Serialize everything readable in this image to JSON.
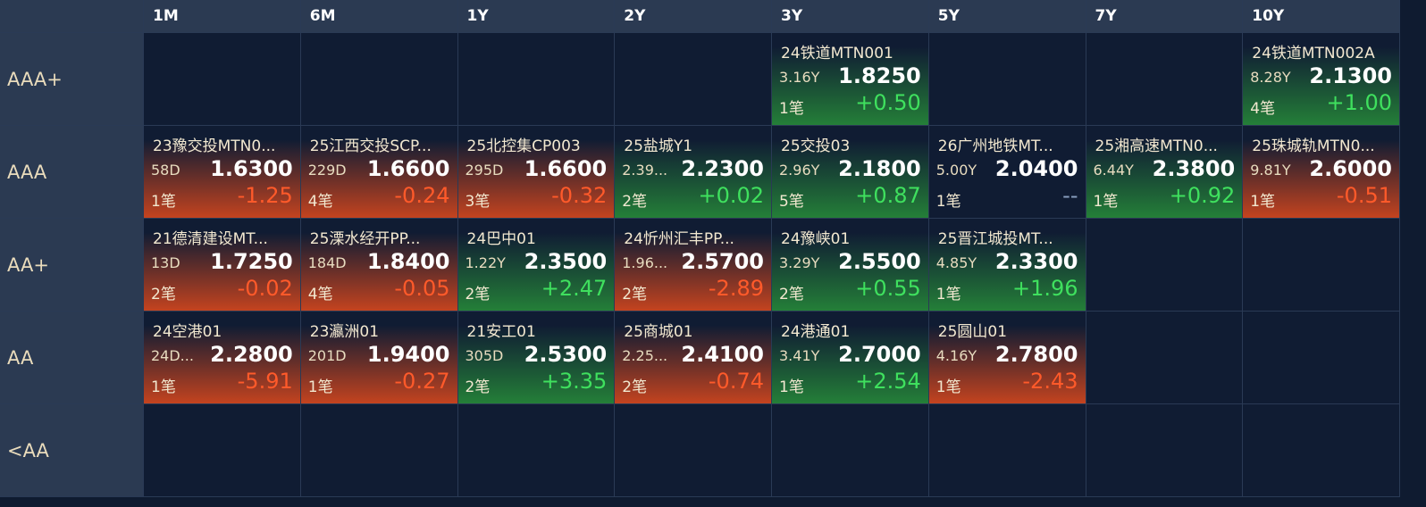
{
  "columns": [
    "1M",
    "6M",
    "1Y",
    "2Y",
    "3Y",
    "5Y",
    "7Y",
    "10Y"
  ],
  "rows": [
    {
      "label": "AAA+",
      "cells": [
        null,
        null,
        null,
        null,
        {
          "name": "24铁道MTN001",
          "term": "3.16Y",
          "yield": "1.8250",
          "count": "1笔",
          "change": "+0.50"
        },
        null,
        null,
        {
          "name": "24铁道MTN002A",
          "term": "8.28Y",
          "yield": "2.1300",
          "count": "4笔",
          "change": "+1.00"
        }
      ]
    },
    {
      "label": "AAA",
      "cells": [
        {
          "name": "23豫交投MTN0...",
          "term": "58D",
          "yield": "1.6300",
          "count": "1笔",
          "change": "-1.25"
        },
        {
          "name": "25江西交投SCP...",
          "term": "229D",
          "yield": "1.6600",
          "count": "4笔",
          "change": "-0.24"
        },
        {
          "name": "25北控集CP003",
          "term": "295D",
          "yield": "1.6600",
          "count": "3笔",
          "change": "-0.32"
        },
        {
          "name": "25盐城Y1",
          "term": "2.39...",
          "yield": "2.2300",
          "count": "2笔",
          "change": "+0.02"
        },
        {
          "name": "25交投03",
          "term": "2.96Y",
          "yield": "2.1800",
          "count": "5笔",
          "change": "+0.87"
        },
        {
          "name": "26广州地铁MT...",
          "term": "5.00Y",
          "yield": "2.0400",
          "count": "1笔",
          "change": "--"
        },
        {
          "name": "25湘高速MTN0...",
          "term": "6.44Y",
          "yield": "2.3800",
          "count": "1笔",
          "change": "+0.92"
        },
        {
          "name": "25珠城轨MTN0...",
          "term": "9.81Y",
          "yield": "2.6000",
          "count": "1笔",
          "change": "-0.51"
        }
      ]
    },
    {
      "label": "AA+",
      "cells": [
        {
          "name": "21德清建设MT...",
          "term": "13D",
          "yield": "1.7250",
          "count": "2笔",
          "change": "-0.02"
        },
        {
          "name": "25溧水经开PP...",
          "term": "184D",
          "yield": "1.8400",
          "count": "4笔",
          "change": "-0.05"
        },
        {
          "name": "24巴中01",
          "term": "1.22Y",
          "yield": "2.3500",
          "count": "2笔",
          "change": "+2.47"
        },
        {
          "name": "24忻州汇丰PP...",
          "term": "1.96...",
          "yield": "2.5700",
          "count": "2笔",
          "change": "-2.89"
        },
        {
          "name": "24豫峡01",
          "term": "3.29Y",
          "yield": "2.5500",
          "count": "2笔",
          "change": "+0.55"
        },
        {
          "name": "25晋江城投MT...",
          "term": "4.85Y",
          "yield": "2.3300",
          "count": "1笔",
          "change": "+1.96"
        },
        null,
        null
      ]
    },
    {
      "label": "AA",
      "cells": [
        {
          "name": "24空港01",
          "term": "24D...",
          "yield": "2.2800",
          "count": "1笔",
          "change": "-5.91"
        },
        {
          "name": "23瀛洲01",
          "term": "201D",
          "yield": "1.9400",
          "count": "1笔",
          "change": "-0.27"
        },
        {
          "name": "21安工01",
          "term": "305D",
          "yield": "2.5300",
          "count": "2笔",
          "change": "+3.35"
        },
        {
          "name": "25商城01",
          "term": "2.25...",
          "yield": "2.4100",
          "count": "2笔",
          "change": "-0.74"
        },
        {
          "name": "24港通01",
          "term": "3.41Y",
          "yield": "2.7000",
          "count": "1笔",
          "change": "+2.54"
        },
        {
          "name": "25圆山01",
          "term": "4.16Y",
          "yield": "2.7800",
          "count": "1笔",
          "change": "-2.43"
        },
        null,
        null
      ]
    },
    {
      "label": "<AA",
      "cells": [
        null,
        null,
        null,
        null,
        null,
        null,
        null,
        null
      ]
    }
  ]
}
